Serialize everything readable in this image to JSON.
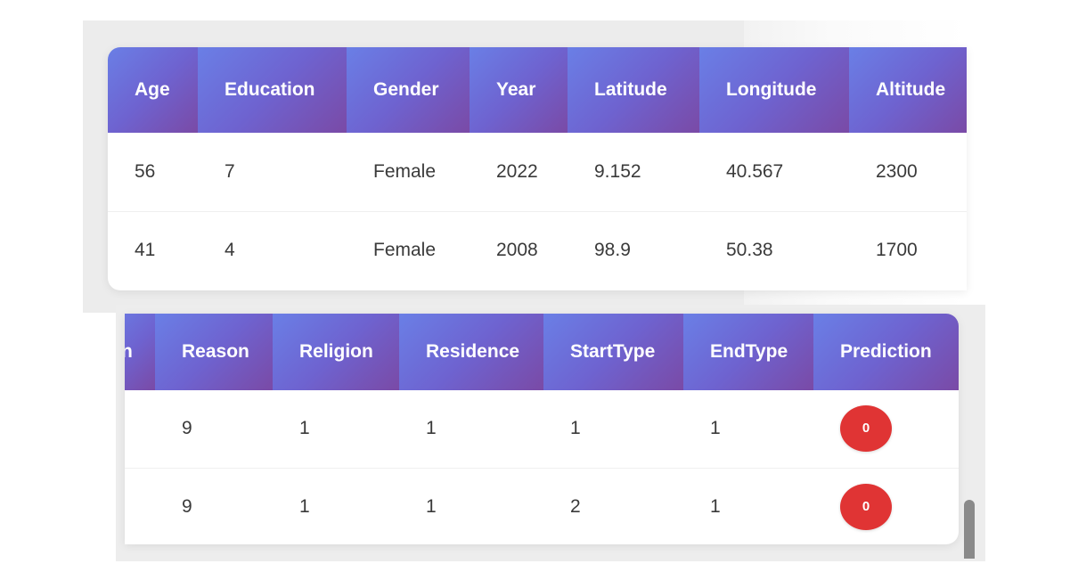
{
  "top_table": {
    "columns": [
      "Age",
      "Education",
      "Gender",
      "Year",
      "Latitude",
      "Longitude",
      "Altitude"
    ],
    "rows": [
      [
        "56",
        "7",
        "Female",
        "2022",
        "9.152",
        "40.567",
        "2300"
      ],
      [
        "41",
        "4",
        "Female",
        "2008",
        "98.9",
        "50.38",
        "1700"
      ]
    ]
  },
  "bottom_table": {
    "columns": [
      "n",
      "Reason",
      "Religion",
      "Residence",
      "StartType",
      "EndType",
      "Prediction"
    ],
    "rows": [
      [
        "",
        "9",
        "1",
        "1",
        "1",
        "1",
        "0"
      ],
      [
        "",
        "9",
        "1",
        "1",
        "2",
        "1",
        "0"
      ]
    ]
  },
  "colors": {
    "header_gradient_start": "#6a7fe6",
    "header_gradient_end": "#7a4aa6",
    "prediction_badge": "#e03434"
  }
}
